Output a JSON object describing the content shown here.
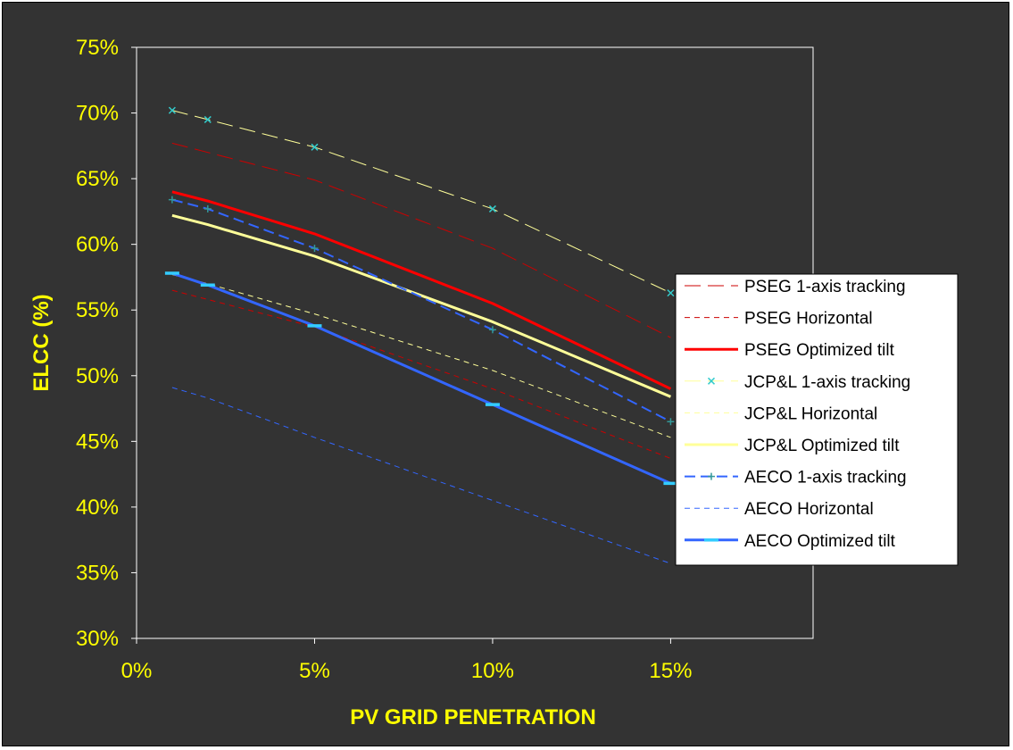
{
  "chart_data": {
    "type": "line",
    "title": "",
    "xlabel": "PV GRID PENETRATION",
    "ylabel": "ELCC (%)",
    "xlim": [
      0,
      0.19
    ],
    "ylim": [
      0.3,
      0.75
    ],
    "x_ticks": [
      {
        "value": 0.0,
        "label": "0%"
      },
      {
        "value": 0.05,
        "label": "5%"
      },
      {
        "value": 0.1,
        "label": "10%"
      },
      {
        "value": 0.15,
        "label": "15%"
      }
    ],
    "y_ticks": [
      {
        "value": 0.3,
        "label": "30%"
      },
      {
        "value": 0.35,
        "label": "35%"
      },
      {
        "value": 0.4,
        "label": "40%"
      },
      {
        "value": 0.45,
        "label": "45%"
      },
      {
        "value": 0.5,
        "label": "50%"
      },
      {
        "value": 0.55,
        "label": "55%"
      },
      {
        "value": 0.6,
        "label": "60%"
      },
      {
        "value": 0.65,
        "label": "65%"
      },
      {
        "value": 0.7,
        "label": "70%"
      },
      {
        "value": 0.75,
        "label": "75%"
      }
    ],
    "x": [
      0.01,
      0.02,
      0.05,
      0.1,
      0.15
    ],
    "legend_position": "right",
    "grid": false,
    "series": [
      {
        "name": "PSEG 1-axis tracking",
        "values": [
          0.677,
          0.67,
          0.649,
          0.597,
          0.529
        ],
        "color": "#cc0000",
        "width": 1,
        "dash": "18,8",
        "marker": "none"
      },
      {
        "name": "PSEG Horizontal",
        "values": [
          0.565,
          0.558,
          0.537,
          0.49,
          0.437
        ],
        "color": "#cc0000",
        "width": 1,
        "dash": "6,5",
        "marker": "none"
      },
      {
        "name": "PSEG Optimized tilt",
        "values": [
          0.64,
          0.633,
          0.608,
          0.555,
          0.49
        ],
        "color": "#ff0000",
        "width": 3,
        "dash": "",
        "marker": "none"
      },
      {
        "name": "JCP&L 1-axis tracking",
        "values": [
          0.702,
          0.695,
          0.674,
          0.627,
          0.563
        ],
        "color": "#ffff99",
        "width": 1,
        "dash": "18,8",
        "marker": "x",
        "marker_color": "#33cccc"
      },
      {
        "name": "JCP&L Horizontal",
        "values": [
          0.577,
          0.57,
          0.547,
          0.504,
          0.453
        ],
        "color": "#ffff99",
        "width": 1,
        "dash": "6,5",
        "marker": "none"
      },
      {
        "name": "JCP&L Optimized tilt",
        "values": [
          0.622,
          0.615,
          0.591,
          0.541,
          0.484
        ],
        "color": "#ffff99",
        "width": 3,
        "dash": "",
        "marker": "none"
      },
      {
        "name": "AECO 1-axis tracking",
        "values": [
          0.634,
          0.627,
          0.597,
          0.535,
          0.465
        ],
        "color": "#3366ff",
        "width": 2,
        "dash": "12,6",
        "marker": "plus",
        "marker_color": "#339999"
      },
      {
        "name": "AECO Horizontal",
        "values": [
          0.491,
          0.483,
          0.453,
          0.405,
          0.357
        ],
        "color": "#3366ff",
        "width": 1,
        "dash": "6,5",
        "marker": "none"
      },
      {
        "name": "AECO Optimized tilt",
        "values": [
          0.578,
          0.569,
          0.538,
          0.478,
          0.418
        ],
        "color": "#3366ff",
        "width": 3,
        "dash": "",
        "marker": "dash",
        "marker_color": "#33ccff"
      }
    ]
  }
}
